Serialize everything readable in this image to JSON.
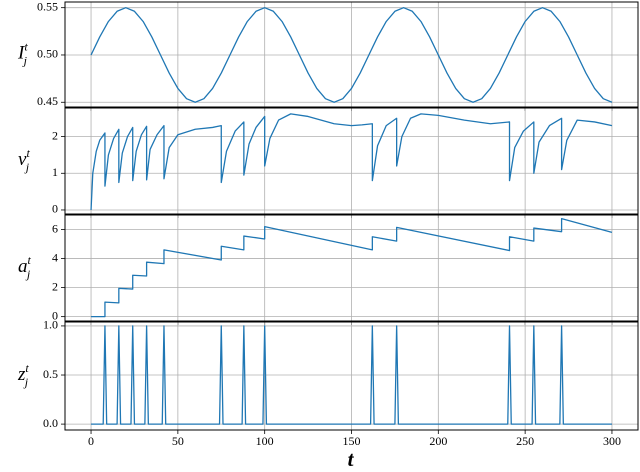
{
  "chart_data": [
    {
      "type": "line",
      "color": "#1f77b4",
      "grid": true,
      "ylabel": {
        "base": "I",
        "sub": "j",
        "sup": "t"
      },
      "xlim": [
        -15,
        315
      ],
      "xticks": [
        0,
        50,
        100,
        150,
        200,
        250,
        300
      ],
      "ylim": [
        0.445,
        0.556
      ],
      "yticks": [
        0.45,
        {
          "value": 0.5,
          "label": "0.50"
        },
        0.55
      ],
      "x": [
        0,
        5,
        10,
        15,
        20,
        25,
        30,
        35,
        40,
        45,
        50,
        55,
        60,
        65,
        70,
        75,
        80,
        85,
        90,
        95,
        100,
        105,
        110,
        115,
        120,
        125,
        130,
        135,
        140,
        145,
        150,
        155,
        160,
        165,
        170,
        175,
        180,
        185,
        190,
        195,
        200,
        205,
        210,
        215,
        220,
        225,
        230,
        235,
        240,
        245,
        250,
        255,
        260,
        265,
        270,
        275,
        280,
        285,
        290,
        295,
        300
      ],
      "values": [
        0.5,
        0.5191,
        0.5354,
        0.5462,
        0.55,
        0.5462,
        0.5354,
        0.5191,
        0.5,
        0.4809,
        0.4646,
        0.4538,
        0.45,
        0.4538,
        0.4646,
        0.4809,
        0.5,
        0.5191,
        0.5354,
        0.5462,
        0.55,
        0.5462,
        0.5354,
        0.5191,
        0.5,
        0.4809,
        0.4646,
        0.4538,
        0.45,
        0.4538,
        0.4646,
        0.4809,
        0.5,
        0.5191,
        0.5354,
        0.5462,
        0.55,
        0.5462,
        0.5354,
        0.5191,
        0.5,
        0.4809,
        0.4646,
        0.4538,
        0.45,
        0.4538,
        0.4646,
        0.4809,
        0.5,
        0.5191,
        0.5354,
        0.5462,
        0.55,
        0.5462,
        0.5354,
        0.5191,
        0.5,
        0.4809,
        0.4646,
        0.4538,
        0.45
      ]
    },
    {
      "type": "line",
      "color": "#1f77b4",
      "grid": true,
      "ylabel": {
        "base": "v",
        "sub": "j",
        "sup": "t"
      },
      "xlim": [
        -15,
        315
      ],
      "xticks": [
        0,
        50,
        100,
        150,
        200,
        250,
        300
      ],
      "ylim": [
        -0.11,
        2.78
      ],
      "yticks": [
        0,
        1,
        2
      ],
      "x": [
        0,
        1,
        3,
        5,
        8,
        8,
        10,
        13,
        16,
        16,
        18,
        21,
        24,
        24,
        26,
        29,
        32,
        32,
        34,
        38,
        42,
        42,
        45,
        50,
        60,
        70,
        75,
        75,
        78,
        83,
        88,
        88,
        91,
        95,
        100,
        100,
        103,
        108,
        115,
        125,
        140,
        150,
        156,
        162,
        162,
        165,
        170,
        176,
        176,
        179,
        184,
        190,
        200,
        215,
        230,
        241,
        241,
        244,
        249,
        255,
        255,
        258,
        264,
        271,
        271,
        274,
        280,
        290,
        300
      ],
      "values": [
        0,
        1.0,
        1.6,
        1.9,
        2.1,
        0.65,
        1.5,
        1.95,
        2.2,
        0.75,
        1.55,
        2.0,
        2.25,
        0.8,
        1.6,
        2.05,
        2.28,
        0.82,
        1.65,
        2.05,
        2.3,
        0.85,
        1.7,
        2.05,
        2.2,
        2.25,
        2.3,
        0.75,
        1.6,
        2.15,
        2.4,
        0.95,
        1.8,
        2.25,
        2.55,
        1.2,
        1.95,
        2.45,
        2.62,
        2.55,
        2.35,
        2.3,
        2.32,
        2.35,
        0.8,
        1.75,
        2.3,
        2.5,
        1.2,
        2.0,
        2.5,
        2.62,
        2.58,
        2.45,
        2.35,
        2.4,
        0.8,
        1.7,
        2.15,
        2.4,
        1.0,
        1.85,
        2.3,
        2.5,
        1.1,
        1.9,
        2.45,
        2.4,
        2.3
      ]
    },
    {
      "type": "line",
      "color": "#1f77b4",
      "grid": true,
      "ylabel": {
        "base": "a",
        "sub": "j",
        "sup": "t"
      },
      "xlim": [
        -15,
        315
      ],
      "xticks": [
        0,
        50,
        100,
        150,
        200,
        250,
        300
      ],
      "ylim": [
        -0.3,
        7.0
      ],
      "yticks": [
        0,
        2,
        4,
        6
      ],
      "x": [
        0,
        8,
        8,
        16,
        16,
        24,
        24,
        32,
        32,
        42,
        42,
        75,
        75,
        88,
        88,
        100,
        100,
        162,
        162,
        176,
        176,
        241,
        241,
        255,
        255,
        271,
        271,
        300
      ],
      "values": [
        0,
        0,
        1,
        0.95,
        1.95,
        1.9,
        2.85,
        2.8,
        3.75,
        3.65,
        4.6,
        3.9,
        4.85,
        4.6,
        5.55,
        5.35,
        6.2,
        4.6,
        5.5,
        5.2,
        6.15,
        4.55,
        5.5,
        5.2,
        6.1,
        5.85,
        6.75,
        5.8
      ]
    },
    {
      "type": "line",
      "color": "#1f77b4",
      "grid": true,
      "ylabel": {
        "base": "z",
        "sub": "j",
        "sup": "t"
      },
      "xlabel": "t",
      "xlim": [
        -15,
        315
      ],
      "xticks": [
        0,
        50,
        100,
        150,
        200,
        250,
        300
      ],
      "ylim": [
        -0.06,
        1.04
      ],
      "yticks": [
        {
          "value": 0,
          "label": "0.0"
        },
        0.5,
        {
          "value": 1,
          "label": "1.0"
        }
      ],
      "x": [
        0,
        7,
        8,
        9,
        15,
        16,
        17,
        23,
        24,
        25,
        31,
        32,
        33,
        41,
        42,
        43,
        74,
        75,
        76,
        87,
        88,
        89,
        99,
        100,
        101,
        161,
        162,
        163,
        175,
        176,
        177,
        240,
        241,
        242,
        254,
        255,
        256,
        270,
        271,
        272,
        300
      ],
      "values": [
        0,
        0,
        1,
        0,
        0,
        1,
        0,
        0,
        1,
        0,
        0,
        1,
        0,
        0,
        1,
        0,
        0,
        1,
        0,
        0,
        1,
        0,
        0,
        1,
        0,
        0,
        1,
        0,
        0,
        1,
        0,
        0,
        1,
        0,
        0,
        1,
        0,
        0,
        1,
        0,
        0
      ]
    }
  ]
}
